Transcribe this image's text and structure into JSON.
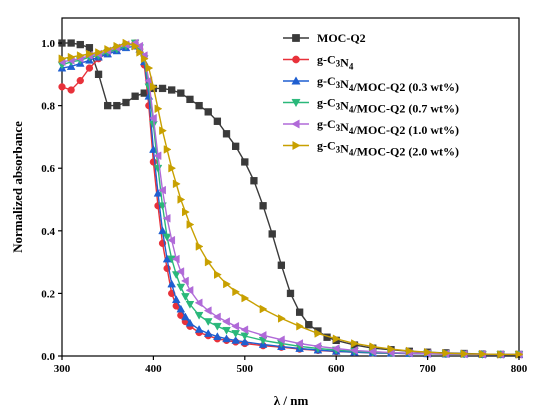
{
  "chart_data": {
    "type": "line",
    "xlabel": "λ / nm",
    "ylabel": "Normalized absorbance",
    "xlim": [
      300,
      800
    ],
    "ylim": [
      0.0,
      1.08
    ],
    "xticks": [
      "300",
      "400",
      "500",
      "600",
      "700",
      "800"
    ],
    "yticks": [
      "0.0",
      "0.2",
      "0.4",
      "0.6",
      "0.8",
      "1.0"
    ],
    "legend_position": "top-right",
    "grid": false,
    "series": [
      {
        "name": "MOC-Q2",
        "name_main": "MOC-Q2",
        "name_sub": "",
        "name_rest": "",
        "color": "#3a3a3a",
        "marker": "square",
        "x": [
          300,
          310,
          320,
          330,
          340,
          350,
          360,
          370,
          380,
          390,
          400,
          410,
          420,
          430,
          440,
          450,
          460,
          470,
          480,
          490,
          500,
          510,
          520,
          530,
          540,
          550,
          560,
          570,
          580,
          590,
          600,
          620,
          640,
          660,
          680,
          700,
          720,
          740,
          760,
          780,
          800
        ],
        "y": [
          1.0,
          1.0,
          0.995,
          0.985,
          0.9,
          0.8,
          0.8,
          0.81,
          0.83,
          0.84,
          0.855,
          0.855,
          0.85,
          0.84,
          0.82,
          0.8,
          0.78,
          0.75,
          0.71,
          0.67,
          0.62,
          0.56,
          0.48,
          0.39,
          0.29,
          0.2,
          0.14,
          0.1,
          0.08,
          0.06,
          0.05,
          0.035,
          0.025,
          0.02,
          0.015,
          0.012,
          0.01,
          0.008,
          0.006,
          0.005,
          0.005
        ]
      },
      {
        "name": "g-C3N4",
        "name_main": "g-C",
        "name_sub": "3",
        "name_rest": "N|4|",
        "color": "#e8313a",
        "marker": "circle",
        "x": [
          300,
          310,
          320,
          330,
          340,
          350,
          360,
          370,
          380,
          385,
          390,
          395,
          400,
          405,
          410,
          415,
          420,
          425,
          430,
          435,
          440,
          450,
          460,
          470,
          480,
          490,
          500,
          520,
          540,
          560,
          580,
          600,
          620,
          640,
          660,
          680,
          700,
          720,
          740,
          760,
          780,
          800
        ],
        "y": [
          0.86,
          0.85,
          0.88,
          0.92,
          0.95,
          0.97,
          0.98,
          0.99,
          1.0,
          0.98,
          0.93,
          0.8,
          0.62,
          0.48,
          0.36,
          0.28,
          0.2,
          0.16,
          0.13,
          0.11,
          0.095,
          0.075,
          0.065,
          0.055,
          0.05,
          0.045,
          0.04,
          0.033,
          0.028,
          0.022,
          0.018,
          0.014,
          0.012,
          0.01,
          0.009,
          0.008,
          0.007,
          0.006,
          0.006,
          0.005,
          0.005,
          0.005
        ]
      },
      {
        "name": "g-C3N4/MOC-Q2 (0.3 wt%)",
        "name_main": "g-C",
        "name_sub": "3",
        "name_rest": "N|4|/MOC-Q2 (0.3 wt%)",
        "color": "#1f5fd0",
        "marker": "triangle-up",
        "x": [
          300,
          310,
          320,
          330,
          340,
          350,
          360,
          370,
          380,
          385,
          390,
          395,
          400,
          405,
          410,
          415,
          420,
          425,
          430,
          435,
          440,
          450,
          460,
          470,
          480,
          490,
          500,
          520,
          540,
          560,
          580,
          600,
          620,
          640,
          660,
          680,
          700,
          720,
          740,
          760,
          780,
          800
        ],
        "y": [
          0.92,
          0.925,
          0.935,
          0.945,
          0.955,
          0.965,
          0.975,
          0.985,
          0.99,
          0.98,
          0.94,
          0.83,
          0.66,
          0.52,
          0.4,
          0.31,
          0.23,
          0.18,
          0.15,
          0.125,
          0.105,
          0.085,
          0.072,
          0.062,
          0.055,
          0.05,
          0.045,
          0.037,
          0.03,
          0.024,
          0.019,
          0.015,
          0.012,
          0.01,
          0.009,
          0.008,
          0.007,
          0.006,
          0.006,
          0.005,
          0.005,
          0.005
        ]
      },
      {
        "name": "g-C3N4/MOC-Q2 (0.7 wt%)",
        "name_main": "g-C",
        "name_sub": "3",
        "name_rest": "N|4|/MOC-Q2 (0.7 wt%)",
        "color": "#2ab87a",
        "marker": "triangle-down",
        "x": [
          300,
          310,
          320,
          330,
          340,
          350,
          360,
          370,
          380,
          385,
          390,
          395,
          400,
          405,
          410,
          415,
          420,
          425,
          430,
          435,
          440,
          450,
          460,
          470,
          480,
          490,
          500,
          520,
          540,
          560,
          580,
          600,
          620,
          640,
          660,
          680,
          700,
          720,
          740,
          760,
          780,
          800
        ],
        "y": [
          0.93,
          0.94,
          0.945,
          0.955,
          0.96,
          0.97,
          0.98,
          0.99,
          1.0,
          0.985,
          0.95,
          0.86,
          0.74,
          0.6,
          0.48,
          0.38,
          0.31,
          0.26,
          0.22,
          0.19,
          0.165,
          0.13,
          0.11,
          0.095,
          0.082,
          0.072,
          0.064,
          0.05,
          0.04,
          0.031,
          0.024,
          0.019,
          0.015,
          0.012,
          0.01,
          0.009,
          0.008,
          0.007,
          0.006,
          0.005,
          0.005,
          0.005
        ]
      },
      {
        "name": "g-C3N4/MOC-Q2 (1.0 wt%)",
        "name_main": "g-C",
        "name_sub": "3",
        "name_rest": "N|4|/MOC-Q2 (1.0 wt%)",
        "color": "#b06ad8",
        "marker": "triangle-left",
        "x": [
          300,
          310,
          320,
          330,
          340,
          350,
          360,
          370,
          380,
          385,
          390,
          395,
          400,
          405,
          410,
          415,
          420,
          425,
          430,
          435,
          440,
          450,
          460,
          470,
          480,
          490,
          500,
          520,
          540,
          560,
          580,
          600,
          620,
          640,
          660,
          680,
          700,
          720,
          740,
          760,
          780,
          800
        ],
        "y": [
          0.94,
          0.945,
          0.95,
          0.96,
          0.965,
          0.975,
          0.985,
          0.995,
          1.0,
          0.99,
          0.96,
          0.88,
          0.76,
          0.64,
          0.53,
          0.44,
          0.37,
          0.31,
          0.27,
          0.24,
          0.21,
          0.17,
          0.145,
          0.125,
          0.11,
          0.095,
          0.084,
          0.066,
          0.052,
          0.04,
          0.031,
          0.024,
          0.018,
          0.014,
          0.011,
          0.009,
          0.008,
          0.007,
          0.006,
          0.005,
          0.005,
          0.005
        ]
      },
      {
        "name": "g-C3N4/MOC-Q2 (2.0 wt%)",
        "name_main": "g-C",
        "name_sub": "3",
        "name_rest": "N|4|/MOC-Q2 (2.0 wt%)",
        "color": "#c8a000",
        "marker": "triangle-right",
        "x": [
          300,
          310,
          320,
          330,
          340,
          350,
          360,
          370,
          380,
          385,
          390,
          395,
          400,
          405,
          410,
          415,
          420,
          425,
          430,
          435,
          440,
          450,
          460,
          470,
          480,
          490,
          500,
          520,
          540,
          560,
          580,
          600,
          620,
          640,
          660,
          680,
          700,
          720,
          740,
          760,
          780,
          800
        ],
        "y": [
          0.95,
          0.955,
          0.96,
          0.965,
          0.97,
          0.98,
          0.99,
          1.0,
          0.99,
          0.97,
          0.95,
          0.92,
          0.86,
          0.79,
          0.72,
          0.66,
          0.6,
          0.55,
          0.5,
          0.46,
          0.42,
          0.35,
          0.3,
          0.26,
          0.23,
          0.205,
          0.185,
          0.15,
          0.12,
          0.095,
          0.072,
          0.055,
          0.04,
          0.03,
          0.022,
          0.016,
          0.012,
          0.009,
          0.007,
          0.006,
          0.005,
          0.005
        ]
      }
    ]
  }
}
